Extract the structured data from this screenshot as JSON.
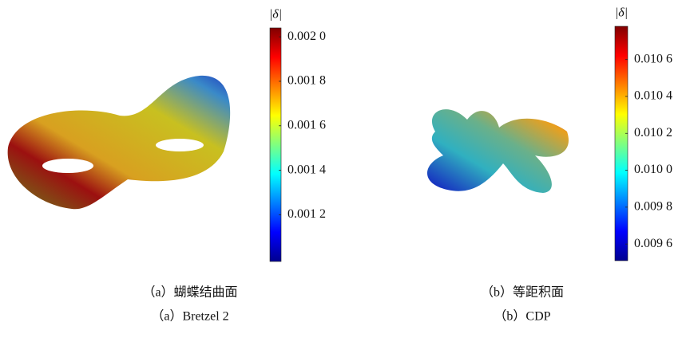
{
  "panels": [
    {
      "colorbar": {
        "label": "|δ|",
        "lim": [
          0.00099,
          0.00204
        ],
        "ticks": [
          {
            "value": 0.002,
            "label": "0.002 0"
          },
          {
            "value": 0.0018,
            "label": "0.001 8"
          },
          {
            "value": 0.0016,
            "label": "0.001 6"
          },
          {
            "value": 0.0014,
            "label": "0.001 4"
          },
          {
            "value": 0.0012,
            "label": "0.001 2"
          }
        ]
      },
      "caption_cn": "（a）蝴蝶结曲面",
      "caption_en": "（a）Bretzel 2"
    },
    {
      "colorbar": {
        "label": "|δ|",
        "lim": [
          0.00951,
          0.01078
        ],
        "ticks": [
          {
            "value": 0.0106,
            "label": "0.010 6"
          },
          {
            "value": 0.0104,
            "label": "0.010 4"
          },
          {
            "value": 0.0102,
            "label": "0.010 2"
          },
          {
            "value": 0.01,
            "label": "0.010 0"
          },
          {
            "value": 0.0098,
            "label": "0.009 8"
          },
          {
            "value": 0.0096,
            "label": "0.009 6"
          }
        ]
      },
      "caption_cn": "（b）等距积面",
      "caption_en": "（b）CDP"
    }
  ]
}
